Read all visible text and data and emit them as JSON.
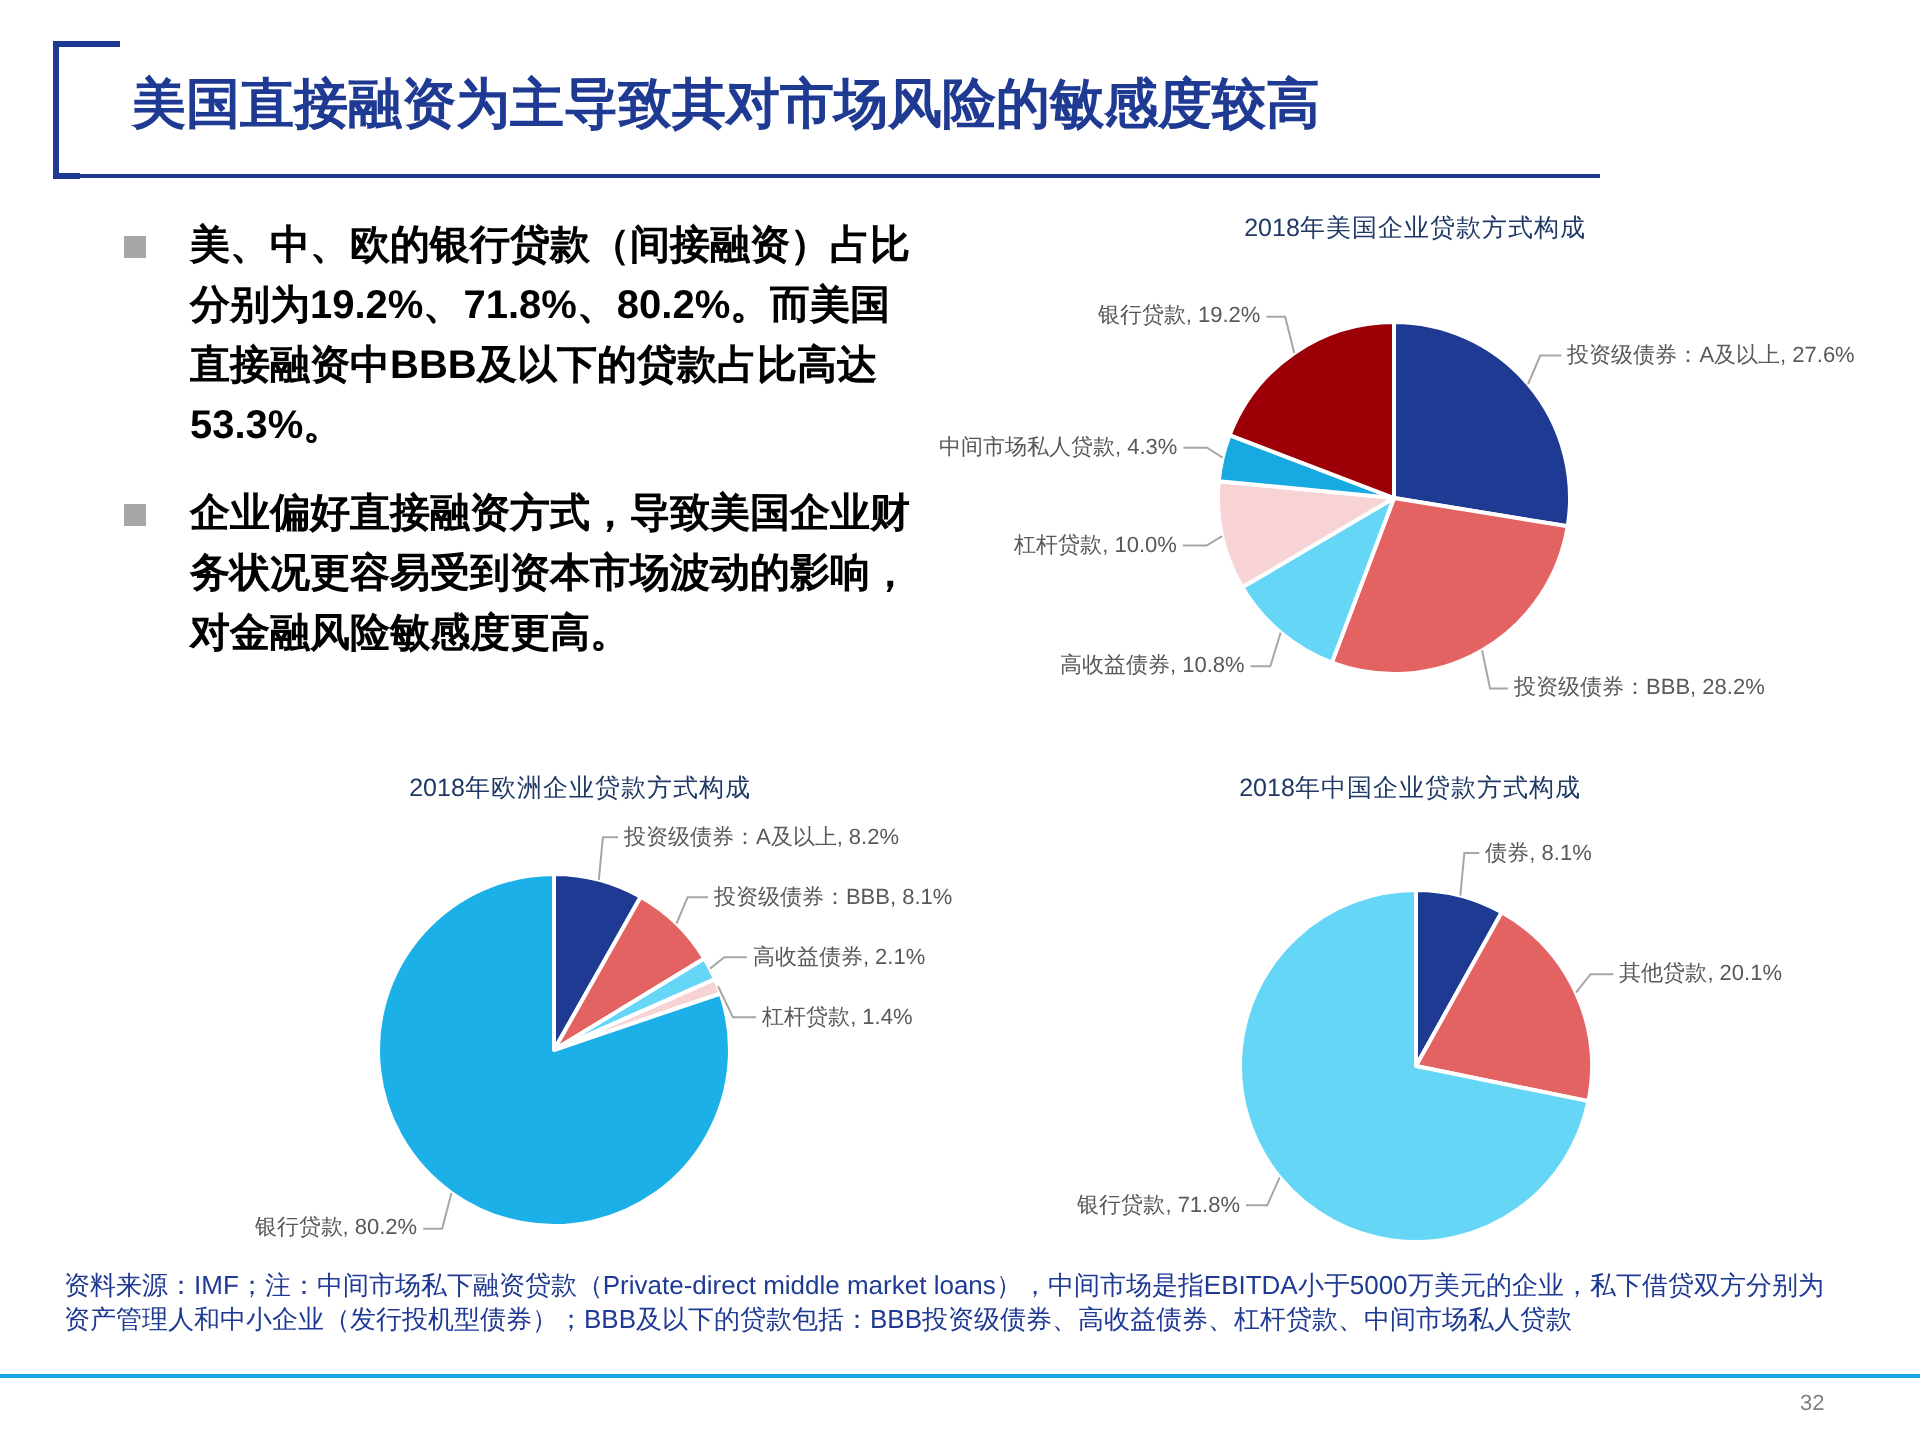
{
  "chart_data": [
    {
      "type": "other",
      "title": "美国直接融资为主导致其对市场风险的敏感度较高",
      "annotations": [
        "美、中、欧的银行贷款（间接融资）占比分别为19.2%、71.8%、80.2%。而美国直接融资中BBB及以下的贷款占比高达53.3%。",
        "企业偏好直接融资方式，导致美国企业财务状况更容易受到资本市场波动的影响，对金融风险敏感度更高。",
        "资料来源：IMF；注：中间市场私下融资贷款（Private-direct middle market loans），中间市场是指EBITDA小于5000万美元的企业，私下借贷双方分别为资产管理人和中小企业（发行投机型债券）；BBB及以下的贷款包括：BBB投资级债券、高收益债券、杠杆贷款、中间市场私人贷款",
        "32"
      ]
    },
    {
      "type": "pie",
      "title": "2018年美国企业贷款方式构成",
      "categories": [
        "投资级债券：A及以上",
        "投资级债券：BBB",
        "高收益债券",
        "杠杆贷款",
        "中间市场私人贷款",
        "银行贷款"
      ],
      "values": [
        27.6,
        28.2,
        10.8,
        10.0,
        4.3,
        19.2
      ],
      "value_labels": [
        "27.6%",
        "28.2%",
        "10.8%",
        "10.0%",
        "4.3%",
        "19.2%"
      ],
      "colors": [
        "#1f3a93",
        "#e36262",
        "#66d6f6",
        "#f8d3d6",
        "#17a9e1",
        "#9c0006"
      ],
      "data_labels": true
    },
    {
      "type": "pie",
      "title": "2018年欧洲企业贷款方式构成",
      "categories": [
        "投资级债券：A及以上",
        "投资级债券：BBB",
        "高收益债券",
        "杠杆贷款",
        "银行贷款"
      ],
      "values": [
        8.2,
        8.1,
        2.1,
        1.4,
        80.2
      ],
      "value_labels": [
        "8.2%",
        "8.1%",
        "2.1%",
        "1.4%",
        "80.2%"
      ],
      "colors": [
        "#1f3a93",
        "#e36262",
        "#66d6f6",
        "#f8d3d6",
        "#1bb0e8"
      ],
      "data_labels": true
    },
    {
      "type": "pie",
      "title": "2018年中国企业贷款方式构成",
      "categories": [
        "债券",
        "其他贷款",
        "银行贷款"
      ],
      "values": [
        8.1,
        20.1,
        71.8
      ],
      "value_labels": [
        "8.1%",
        "20.1%",
        "71.8%"
      ],
      "colors": [
        "#1f3a93",
        "#e36262",
        "#66d6f6"
      ],
      "data_labels": true
    }
  ]
}
